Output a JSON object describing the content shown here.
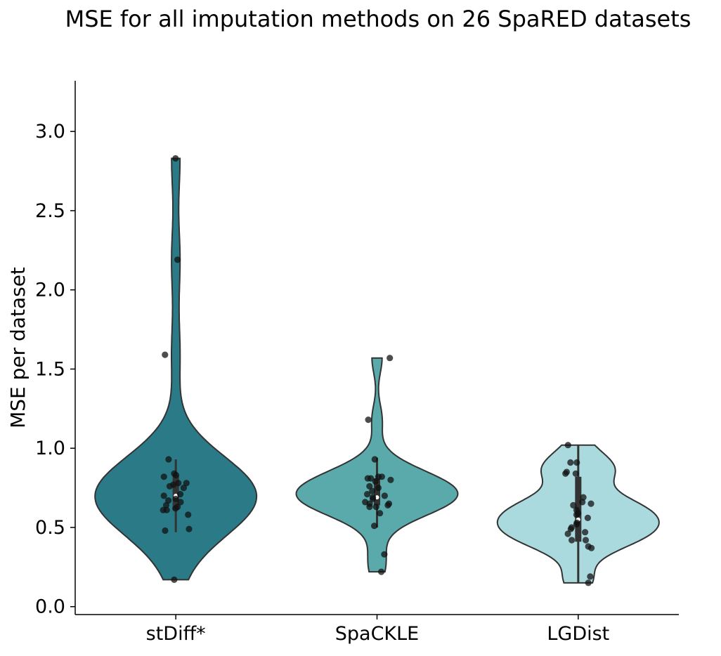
{
  "chart_data": {
    "type": "violin",
    "title": "MSE for all imputation methods on 26 SpaRED datasets",
    "xlabel": "",
    "ylabel": "MSE per dataset",
    "ylim": [
      -0.05,
      3.32
    ],
    "yticks": [
      0.0,
      0.5,
      1.0,
      1.5,
      2.0,
      2.5,
      3.0
    ],
    "ytick_labels": [
      "0.0",
      "0.5",
      "1.0",
      "1.5",
      "2.0",
      "2.5",
      "3.0"
    ],
    "categories": [
      "stDiff*",
      "SpaCKLE",
      "LGDist"
    ],
    "grid": false,
    "colors": {
      "stDiff*": "#2a7b87",
      "SpaCKLE": "#5aa9ab",
      "LGDist": "#aadadd",
      "outline": "#333333",
      "points": "#111111",
      "axis": "#000000"
    },
    "series": [
      {
        "name": "stDiff*",
        "min": 0.17,
        "q1": 0.61,
        "median": 0.7,
        "q3": 0.83,
        "whisker_low": 0.47,
        "whisker_high": 0.93,
        "max": 2.83,
        "values": [
          2.83,
          2.19,
          1.59,
          0.93,
          0.84,
          0.83,
          0.82,
          0.78,
          0.78,
          0.77,
          0.76,
          0.75,
          0.71,
          0.7,
          0.68,
          0.67,
          0.66,
          0.64,
          0.63,
          0.62,
          0.61,
          0.61,
          0.58,
          0.49,
          0.48,
          0.17
        ]
      },
      {
        "name": "SpaCKLE",
        "min": 0.22,
        "q1": 0.64,
        "median": 0.69,
        "q3": 0.81,
        "whisker_low": 0.5,
        "whisker_high": 0.94,
        "max": 1.57,
        "values": [
          1.57,
          1.18,
          0.93,
          0.82,
          0.82,
          0.81,
          0.81,
          0.8,
          0.79,
          0.76,
          0.75,
          0.73,
          0.71,
          0.7,
          0.69,
          0.68,
          0.66,
          0.65,
          0.65,
          0.64,
          0.63,
          0.63,
          0.59,
          0.51,
          0.33,
          0.22
        ]
      },
      {
        "name": "LGDist",
        "min": 0.15,
        "q1": 0.41,
        "median": 0.55,
        "q3": 0.82,
        "whisker_low": 0.15,
        "whisker_high": 1.02,
        "max": 1.02,
        "values": [
          1.02,
          0.91,
          0.91,
          0.85,
          0.84,
          0.84,
          0.69,
          0.66,
          0.65,
          0.64,
          0.61,
          0.59,
          0.58,
          0.56,
          0.53,
          0.52,
          0.5,
          0.49,
          0.47,
          0.46,
          0.42,
          0.42,
          0.38,
          0.37,
          0.19,
          0.15
        ]
      }
    ]
  }
}
